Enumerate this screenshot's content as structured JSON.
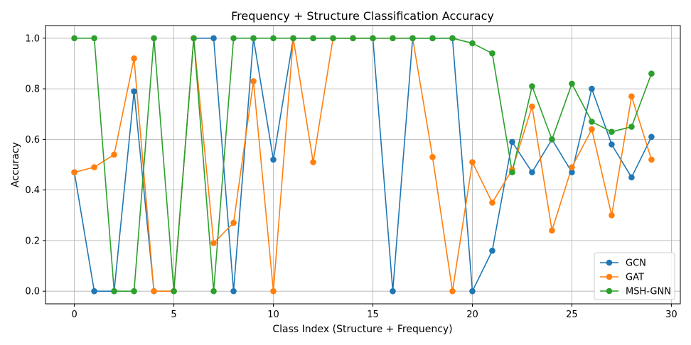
{
  "chart_data": {
    "type": "line",
    "title": "Frequency + Structure Classification Accuracy",
    "xlabel": "Class Index (Structure + Frequency)",
    "ylabel": "Accuracy",
    "xlim": [
      -1.45,
      30.45
    ],
    "ylim": [
      -0.05,
      1.05
    ],
    "xticks": [
      0,
      5,
      10,
      15,
      20,
      25,
      30
    ],
    "yticks": [
      0.0,
      0.2,
      0.4,
      0.6,
      0.8,
      1.0
    ],
    "xtick_labels": [
      "0",
      "5",
      "10",
      "15",
      "20",
      "25",
      "30"
    ],
    "ytick_labels": [
      "0.0",
      "0.2",
      "0.4",
      "0.6",
      "0.8",
      "1.0"
    ],
    "grid": true,
    "legend_position": "lower-right",
    "x": [
      0,
      1,
      2,
      3,
      4,
      5,
      6,
      7,
      8,
      9,
      10,
      11,
      12,
      13,
      14,
      15,
      16,
      17,
      18,
      19,
      20,
      21,
      22,
      23,
      24,
      25,
      26,
      27,
      28,
      29
    ],
    "series": [
      {
        "name": "GCN",
        "color": "#1f77b4",
        "values": [
          0.47,
          0.0,
          0.0,
          0.79,
          0.0,
          0.0,
          1.0,
          1.0,
          0.0,
          1.0,
          0.52,
          1.0,
          1.0,
          1.0,
          1.0,
          1.0,
          0.0,
          1.0,
          1.0,
          1.0,
          0.0,
          0.16,
          0.59,
          0.47,
          0.6,
          0.47,
          0.8,
          0.58,
          0.45,
          0.61
        ]
      },
      {
        "name": "GAT",
        "color": "#ff7f0e",
        "values": [
          0.47,
          0.49,
          0.54,
          0.92,
          0.0,
          0.0,
          1.0,
          0.19,
          0.27,
          0.83,
          0.0,
          1.0,
          0.51,
          1.0,
          1.0,
          1.0,
          1.0,
          1.0,
          0.53,
          0.0,
          0.51,
          0.35,
          0.48,
          0.73,
          0.24,
          0.49,
          0.64,
          0.3,
          0.77,
          0.52
        ]
      },
      {
        "name": "MSH-GNN",
        "color": "#2ca02c",
        "values": [
          1.0,
          1.0,
          0.0,
          0.0,
          1.0,
          0.0,
          1.0,
          0.0,
          1.0,
          1.0,
          1.0,
          1.0,
          1.0,
          1.0,
          1.0,
          1.0,
          1.0,
          1.0,
          1.0,
          1.0,
          0.98,
          0.94,
          0.47,
          0.81,
          0.6,
          0.82,
          0.67,
          0.63,
          0.65,
          0.86
        ]
      }
    ]
  }
}
